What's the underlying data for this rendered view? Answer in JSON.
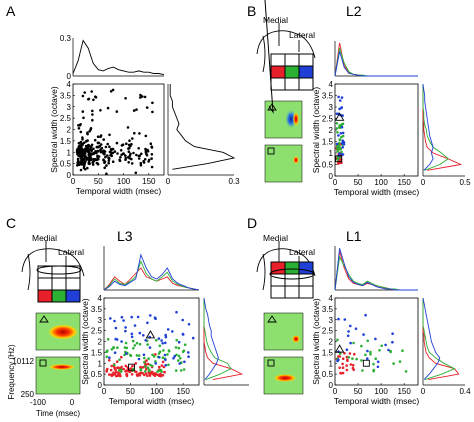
{
  "panels": {
    "A": {
      "letter": "A",
      "title": ""
    },
    "B": {
      "letter": "B",
      "title": "L2"
    },
    "C": {
      "letter": "C",
      "title": "L3"
    },
    "D": {
      "letter": "D",
      "title": "L1"
    }
  },
  "diagram": {
    "medial": "Medial",
    "lateral": "Lateral"
  },
  "axes": {
    "xlabel": "Temporal width (msec)",
    "ylabel": "Spectral width (octave)",
    "time_label": "Time (msec)",
    "freq_label": "Frequency (Hz)",
    "freq_ticks": [
      "10112",
      "250"
    ],
    "time_ticks": [
      "-100",
      "0"
    ]
  },
  "colors": {
    "red": "#e8202a",
    "green": "#2bb034",
    "blue": "#1f3fd6",
    "black": "#000000"
  },
  "chart_data": [
    {
      "panel": "A",
      "type": "scatter",
      "xlabel": "Temporal width (msec)",
      "ylabel": "Spectral width (octave)",
      "xlim": [
        0,
        180
      ],
      "ylim": [
        0,
        4
      ],
      "xticks": [
        "0",
        "50",
        "100",
        "150"
      ],
      "yticks": [
        "0",
        "0.5",
        "1",
        "1.5",
        "2",
        "2.5",
        "3",
        "3.5",
        "4"
      ],
      "top_marginal": {
        "ylim": [
          0,
          0.3
        ],
        "yticks": [
          "0",
          "0.3"
        ],
        "x": [
          0,
          10,
          20,
          30,
          40,
          50,
          60,
          70,
          80,
          90,
          100,
          110,
          120,
          130,
          140,
          150,
          160,
          170,
          180
        ],
        "y": [
          0.02,
          0.12,
          0.28,
          0.22,
          0.1,
          0.05,
          0.04,
          0.06,
          0.07,
          0.05,
          0.04,
          0.03,
          0.03,
          0.04,
          0.03,
          0.03,
          0.02,
          0.02,
          0.01
        ]
      },
      "right_marginal": {
        "xlim": [
          0,
          0.3
        ],
        "xticks": [
          "0",
          "0.3"
        ],
        "y": [
          0.25,
          0.5,
          0.75,
          1,
          1.25,
          1.5,
          1.75,
          2,
          2.25,
          2.5,
          2.75,
          3,
          3.25,
          3.5,
          3.75,
          4
        ],
        "x": [
          0.02,
          0.18,
          0.3,
          0.25,
          0.12,
          0.08,
          0.06,
          0.04,
          0.05,
          0.04,
          0.03,
          0.02,
          0.02,
          0.01,
          0.01,
          0.01
        ]
      }
    },
    {
      "panel": "B",
      "type": "scatter",
      "xlabel": "Temporal width (msec)",
      "ylabel": "Spectral width (octave)",
      "xlim": [
        0,
        180
      ],
      "ylim": [
        0,
        4
      ],
      "xticks": [
        "0",
        "50",
        "100",
        "150"
      ],
      "yticks": [
        "0",
        "0.5",
        "1",
        "1.5",
        "2",
        "2.5",
        "3",
        "3.5",
        "4"
      ],
      "marked": {
        "triangle": [
          10,
          2.55
        ],
        "square": [
          8,
          0.75
        ]
      },
      "right_marginal": {
        "xlim": [
          0,
          0.5
        ],
        "xticks": [
          "0",
          "0.5"
        ]
      }
    },
    {
      "panel": "C",
      "type": "scatter",
      "xlabel": "Temporal width (msec)",
      "ylabel": "Spectral width (octave)",
      "xlim": [
        0,
        180
      ],
      "ylim": [
        0,
        4
      ],
      "xticks": [
        "0",
        "50",
        "100",
        "150"
      ],
      "yticks": [
        "0",
        "0.5",
        "1",
        "1.5",
        "2",
        "2.5",
        "3",
        "3.5",
        "4"
      ],
      "marked": {
        "triangle": [
          88,
          2.3
        ],
        "square": [
          52,
          0.82
        ]
      }
    },
    {
      "panel": "D",
      "type": "scatter",
      "xlabel": "Temporal width (msec)",
      "ylabel": "Spectral width (octave)",
      "xlim": [
        0,
        180
      ],
      "ylim": [
        0,
        4
      ],
      "xticks": [
        "0",
        "50",
        "100",
        "150"
      ],
      "yticks": [
        "0",
        "0.5",
        "1",
        "1.5",
        "2",
        "2.5",
        "3",
        "3.5",
        "4"
      ],
      "marked": {
        "triangle": [
          10,
          1.65
        ],
        "square": [
          68,
          1.0
        ]
      },
      "right_marginal": {
        "xlim": [
          0,
          0.4
        ],
        "xticks": [
          "0",
          "0.4"
        ]
      }
    }
  ]
}
